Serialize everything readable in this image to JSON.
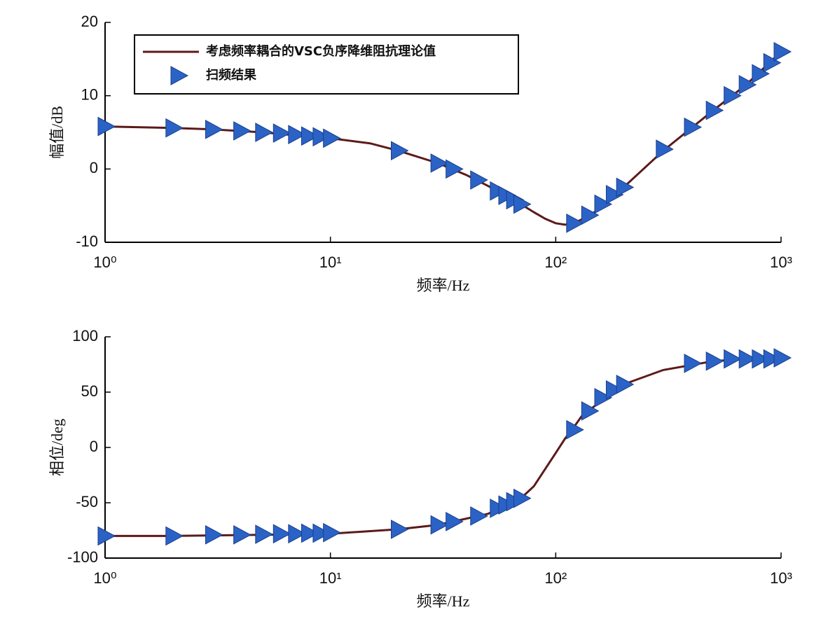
{
  "chart_data": [
    {
      "type": "line",
      "xscale": "log",
      "xlim": [
        1,
        1000
      ],
      "ylim": [
        -10,
        20
      ],
      "xticks": [
        {
          "value": 1,
          "label": "10⁰"
        },
        {
          "value": 10,
          "label": "10¹"
        },
        {
          "value": 100,
          "label": "10²"
        },
        {
          "value": 1000,
          "label": "10³"
        }
      ],
      "yticks": [
        -10,
        0,
        10,
        20
      ],
      "xlabel": "频率/Hz",
      "ylabel": "幅值/dB",
      "legend": "upper left",
      "series": [
        {
          "name": "考虑频率耦合的VSC负序降维阻抗理论值",
          "color": "#5c1a1a",
          "marker": "none",
          "x": [
            1,
            2,
            3,
            5,
            7,
            10,
            15,
            20,
            30,
            40,
            50,
            60,
            70,
            80,
            90,
            100,
            110,
            120,
            130,
            150,
            200,
            300,
            500,
            700,
            1000
          ],
          "values": [
            5.8,
            5.6,
            5.4,
            5.0,
            4.6,
            4.2,
            3.5,
            2.5,
            0.8,
            -0.8,
            -2.3,
            -3.6,
            -4.8,
            -5.9,
            -6.8,
            -7.4,
            -7.6,
            -7.4,
            -6.9,
            -5.8,
            -2.5,
            2.5,
            8,
            11.5,
            16
          ]
        },
        {
          "name": "扫频结果",
          "color": "#2b62c6",
          "marker": "triangle-right",
          "x": [
            1,
            2,
            3,
            4,
            5,
            6,
            7,
            8,
            9,
            10,
            20,
            30,
            35,
            45,
            55,
            60,
            65,
            70,
            120,
            140,
            160,
            180,
            200,
            300,
            400,
            500,
            600,
            700,
            800,
            900,
            1000
          ],
          "values": [
            5.8,
            5.6,
            5.4,
            5.2,
            5.0,
            4.9,
            4.7,
            4.5,
            4.4,
            4.2,
            2.5,
            0.8,
            0,
            -1.5,
            -3,
            -3.6,
            -4.2,
            -4.8,
            -7.4,
            -6.3,
            -4.8,
            -3.5,
            -2.5,
            2.7,
            5.7,
            8,
            10,
            11.5,
            13,
            14.5,
            16
          ]
        }
      ]
    },
    {
      "type": "line",
      "xscale": "log",
      "xlim": [
        1,
        1000
      ],
      "ylim": [
        -100,
        100
      ],
      "xticks": [
        {
          "value": 1,
          "label": "10⁰"
        },
        {
          "value": 10,
          "label": "10¹"
        },
        {
          "value": 100,
          "label": "10²"
        },
        {
          "value": 1000,
          "label": "10³"
        }
      ],
      "yticks": [
        -100,
        -50,
        0,
        50,
        100
      ],
      "xlabel": "频率/Hz",
      "ylabel": "相位/deg",
      "series": [
        {
          "color": "#5c1a1a",
          "marker": "none",
          "x": [
            1,
            2,
            5,
            10,
            20,
            30,
            50,
            70,
            80,
            100,
            110,
            120,
            130,
            150,
            200,
            300,
            500,
            700,
            1000
          ],
          "values": [
            -80,
            -80,
            -79,
            -78,
            -74,
            -70,
            -60,
            -46,
            -35,
            -5,
            8,
            18,
            28,
            38,
            57,
            70,
            78,
            80,
            82
          ]
        },
        {
          "color": "#2b62c6",
          "marker": "triangle-right",
          "x": [
            1,
            2,
            3,
            4,
            5,
            6,
            7,
            8,
            9,
            10,
            20,
            30,
            35,
            45,
            55,
            60,
            65,
            70,
            120,
            140,
            160,
            180,
            200,
            400,
            500,
            600,
            700,
            800,
            900,
            1000
          ],
          "values": [
            -80,
            -80,
            -79,
            -79,
            -78.5,
            -78,
            -78,
            -77.5,
            -77.5,
            -77,
            -74,
            -70,
            -67,
            -62,
            -55,
            -52,
            -49,
            -46,
            16,
            33,
            45,
            52,
            57,
            76,
            78,
            80,
            80,
            80,
            80,
            81
          ]
        }
      ]
    }
  ]
}
